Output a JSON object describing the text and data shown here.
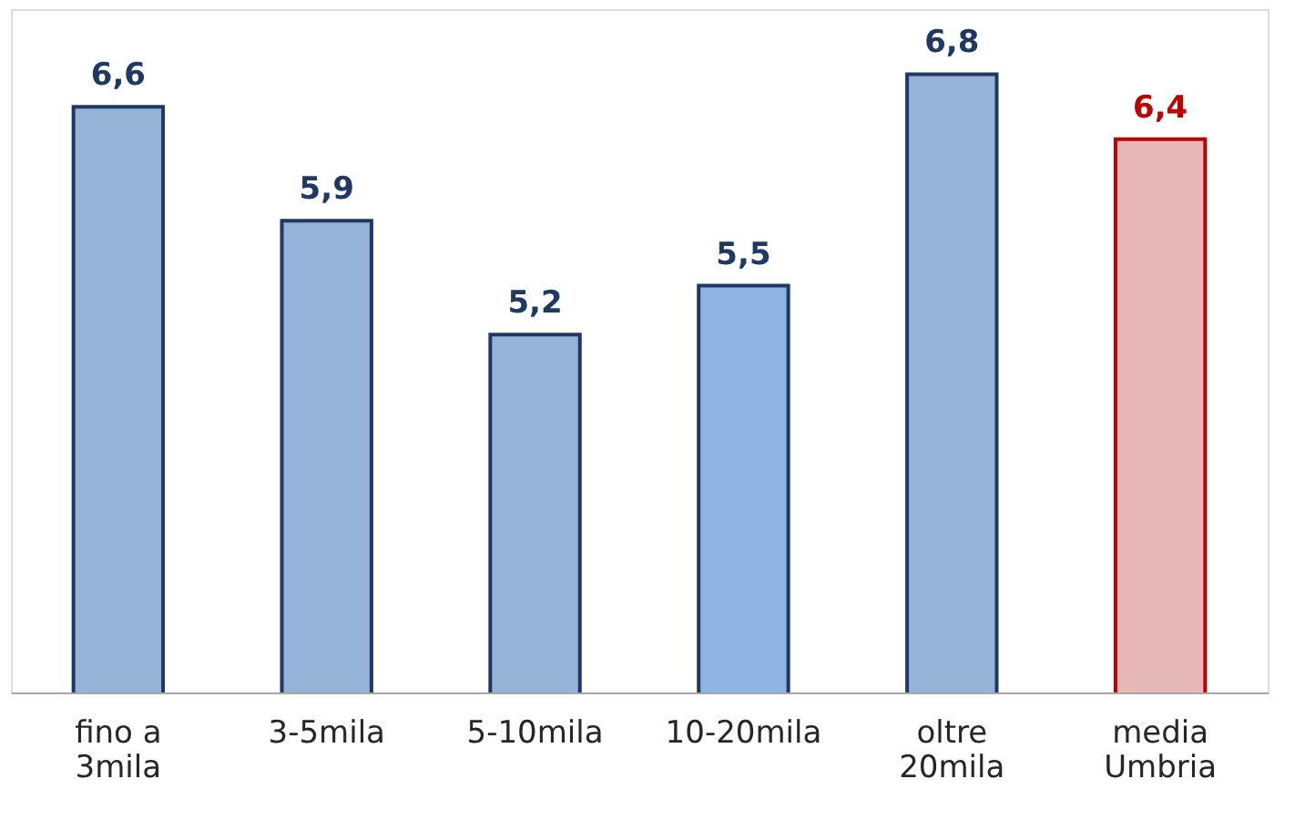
{
  "chart_data": {
    "type": "bar",
    "categories": [
      "fino a 3mila",
      "3-5mila",
      "5-10mila",
      "10-20mila",
      "oltre 20mila",
      "media Umbria"
    ],
    "values": [
      6.6,
      5.9,
      5.2,
      5.5,
      6.8,
      6.4
    ],
    "value_labels": [
      "6,6",
      "5,9",
      "5,2",
      "5,5",
      "6,8",
      "6,4"
    ],
    "colors": [
      "#95b3d7",
      "#95b3d7",
      "#95b3d7",
      "#8db4e2",
      "#95b3d7",
      "#e6b9b8"
    ],
    "ylim": [
      3,
      7.2
    ],
    "tick_labels": "x"
  }
}
